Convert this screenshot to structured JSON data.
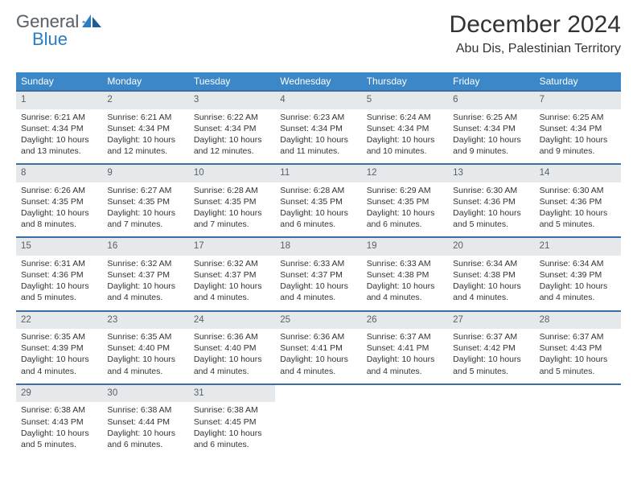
{
  "logo": {
    "general": "General",
    "blue": "Blue"
  },
  "title": "December 2024",
  "location": "Abu Dis, Palestinian Territory",
  "colors": {
    "header_bg": "#3b87c8",
    "header_text": "#ffffff",
    "daynum_bg": "#e6e9ec",
    "daynum_text": "#5a5f66",
    "week_border": "#3b6fa0",
    "body_text": "#333333",
    "logo_gray": "#60676e",
    "logo_blue": "#2a7cc4"
  },
  "daynames": [
    "Sunday",
    "Monday",
    "Tuesday",
    "Wednesday",
    "Thursday",
    "Friday",
    "Saturday"
  ],
  "weeks": [
    [
      {
        "n": "1",
        "sr": "Sunrise: 6:21 AM",
        "ss": "Sunset: 4:34 PM",
        "dl": "Daylight: 10 hours and 13 minutes."
      },
      {
        "n": "2",
        "sr": "Sunrise: 6:21 AM",
        "ss": "Sunset: 4:34 PM",
        "dl": "Daylight: 10 hours and 12 minutes."
      },
      {
        "n": "3",
        "sr": "Sunrise: 6:22 AM",
        "ss": "Sunset: 4:34 PM",
        "dl": "Daylight: 10 hours and 12 minutes."
      },
      {
        "n": "4",
        "sr": "Sunrise: 6:23 AM",
        "ss": "Sunset: 4:34 PM",
        "dl": "Daylight: 10 hours and 11 minutes."
      },
      {
        "n": "5",
        "sr": "Sunrise: 6:24 AM",
        "ss": "Sunset: 4:34 PM",
        "dl": "Daylight: 10 hours and 10 minutes."
      },
      {
        "n": "6",
        "sr": "Sunrise: 6:25 AM",
        "ss": "Sunset: 4:34 PM",
        "dl": "Daylight: 10 hours and 9 minutes."
      },
      {
        "n": "7",
        "sr": "Sunrise: 6:25 AM",
        "ss": "Sunset: 4:34 PM",
        "dl": "Daylight: 10 hours and 9 minutes."
      }
    ],
    [
      {
        "n": "8",
        "sr": "Sunrise: 6:26 AM",
        "ss": "Sunset: 4:35 PM",
        "dl": "Daylight: 10 hours and 8 minutes."
      },
      {
        "n": "9",
        "sr": "Sunrise: 6:27 AM",
        "ss": "Sunset: 4:35 PM",
        "dl": "Daylight: 10 hours and 7 minutes."
      },
      {
        "n": "10",
        "sr": "Sunrise: 6:28 AM",
        "ss": "Sunset: 4:35 PM",
        "dl": "Daylight: 10 hours and 7 minutes."
      },
      {
        "n": "11",
        "sr": "Sunrise: 6:28 AM",
        "ss": "Sunset: 4:35 PM",
        "dl": "Daylight: 10 hours and 6 minutes."
      },
      {
        "n": "12",
        "sr": "Sunrise: 6:29 AM",
        "ss": "Sunset: 4:35 PM",
        "dl": "Daylight: 10 hours and 6 minutes."
      },
      {
        "n": "13",
        "sr": "Sunrise: 6:30 AM",
        "ss": "Sunset: 4:36 PM",
        "dl": "Daylight: 10 hours and 5 minutes."
      },
      {
        "n": "14",
        "sr": "Sunrise: 6:30 AM",
        "ss": "Sunset: 4:36 PM",
        "dl": "Daylight: 10 hours and 5 minutes."
      }
    ],
    [
      {
        "n": "15",
        "sr": "Sunrise: 6:31 AM",
        "ss": "Sunset: 4:36 PM",
        "dl": "Daylight: 10 hours and 5 minutes."
      },
      {
        "n": "16",
        "sr": "Sunrise: 6:32 AM",
        "ss": "Sunset: 4:37 PM",
        "dl": "Daylight: 10 hours and 4 minutes."
      },
      {
        "n": "17",
        "sr": "Sunrise: 6:32 AM",
        "ss": "Sunset: 4:37 PM",
        "dl": "Daylight: 10 hours and 4 minutes."
      },
      {
        "n": "18",
        "sr": "Sunrise: 6:33 AM",
        "ss": "Sunset: 4:37 PM",
        "dl": "Daylight: 10 hours and 4 minutes."
      },
      {
        "n": "19",
        "sr": "Sunrise: 6:33 AM",
        "ss": "Sunset: 4:38 PM",
        "dl": "Daylight: 10 hours and 4 minutes."
      },
      {
        "n": "20",
        "sr": "Sunrise: 6:34 AM",
        "ss": "Sunset: 4:38 PM",
        "dl": "Daylight: 10 hours and 4 minutes."
      },
      {
        "n": "21",
        "sr": "Sunrise: 6:34 AM",
        "ss": "Sunset: 4:39 PM",
        "dl": "Daylight: 10 hours and 4 minutes."
      }
    ],
    [
      {
        "n": "22",
        "sr": "Sunrise: 6:35 AM",
        "ss": "Sunset: 4:39 PM",
        "dl": "Daylight: 10 hours and 4 minutes."
      },
      {
        "n": "23",
        "sr": "Sunrise: 6:35 AM",
        "ss": "Sunset: 4:40 PM",
        "dl": "Daylight: 10 hours and 4 minutes."
      },
      {
        "n": "24",
        "sr": "Sunrise: 6:36 AM",
        "ss": "Sunset: 4:40 PM",
        "dl": "Daylight: 10 hours and 4 minutes."
      },
      {
        "n": "25",
        "sr": "Sunrise: 6:36 AM",
        "ss": "Sunset: 4:41 PM",
        "dl": "Daylight: 10 hours and 4 minutes."
      },
      {
        "n": "26",
        "sr": "Sunrise: 6:37 AM",
        "ss": "Sunset: 4:41 PM",
        "dl": "Daylight: 10 hours and 4 minutes."
      },
      {
        "n": "27",
        "sr": "Sunrise: 6:37 AM",
        "ss": "Sunset: 4:42 PM",
        "dl": "Daylight: 10 hours and 5 minutes."
      },
      {
        "n": "28",
        "sr": "Sunrise: 6:37 AM",
        "ss": "Sunset: 4:43 PM",
        "dl": "Daylight: 10 hours and 5 minutes."
      }
    ],
    [
      {
        "n": "29",
        "sr": "Sunrise: 6:38 AM",
        "ss": "Sunset: 4:43 PM",
        "dl": "Daylight: 10 hours and 5 minutes."
      },
      {
        "n": "30",
        "sr": "Sunrise: 6:38 AM",
        "ss": "Sunset: 4:44 PM",
        "dl": "Daylight: 10 hours and 6 minutes."
      },
      {
        "n": "31",
        "sr": "Sunrise: 6:38 AM",
        "ss": "Sunset: 4:45 PM",
        "dl": "Daylight: 10 hours and 6 minutes."
      },
      null,
      null,
      null,
      null
    ]
  ]
}
